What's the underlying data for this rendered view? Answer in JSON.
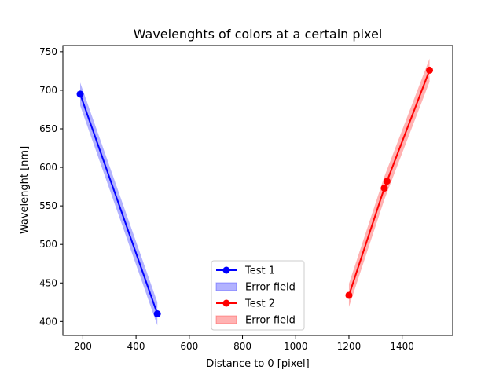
{
  "chart_data": {
    "type": "line",
    "title": "Wavelenghts of colors at a certain pixel",
    "xlabel": "Distance to 0 [pixel]",
    "ylabel": "Wavelenght [nm]",
    "xlim": [
      125,
      1590
    ],
    "ylim": [
      382,
      758
    ],
    "xticks": [
      200,
      400,
      600,
      800,
      1000,
      1200,
      1400
    ],
    "yticks": [
      400,
      450,
      500,
      550,
      600,
      650,
      700,
      750
    ],
    "grid": false,
    "legend_position": "bottom-center",
    "series": [
      {
        "name": "Test 1",
        "color": "#0000ff",
        "marker": "circle",
        "points": [
          [
            190,
            695
          ],
          [
            480,
            410
          ]
        ],
        "error_band": {
          "name": "Error field",
          "color": "#0000ff",
          "alpha": 0.3,
          "half_width": 15
        }
      },
      {
        "name": "Test 2",
        "color": "#ff0000",
        "marker": "circle",
        "points": [
          [
            1200,
            434
          ],
          [
            1333,
            573
          ],
          [
            1343,
            582
          ],
          [
            1503,
            726
          ]
        ],
        "error_band": {
          "name": "Error field",
          "color": "#ff0000",
          "alpha": 0.3,
          "half_width": 15
        }
      }
    ],
    "legend": [
      {
        "label": "Test 1",
        "kind": "line",
        "color": "#0000ff"
      },
      {
        "label": "Error field",
        "kind": "patch",
        "color": "#0000ff"
      },
      {
        "label": "Test 2",
        "kind": "line",
        "color": "#ff0000"
      },
      {
        "label": "Error field",
        "kind": "patch",
        "color": "#ff0000"
      }
    ]
  }
}
